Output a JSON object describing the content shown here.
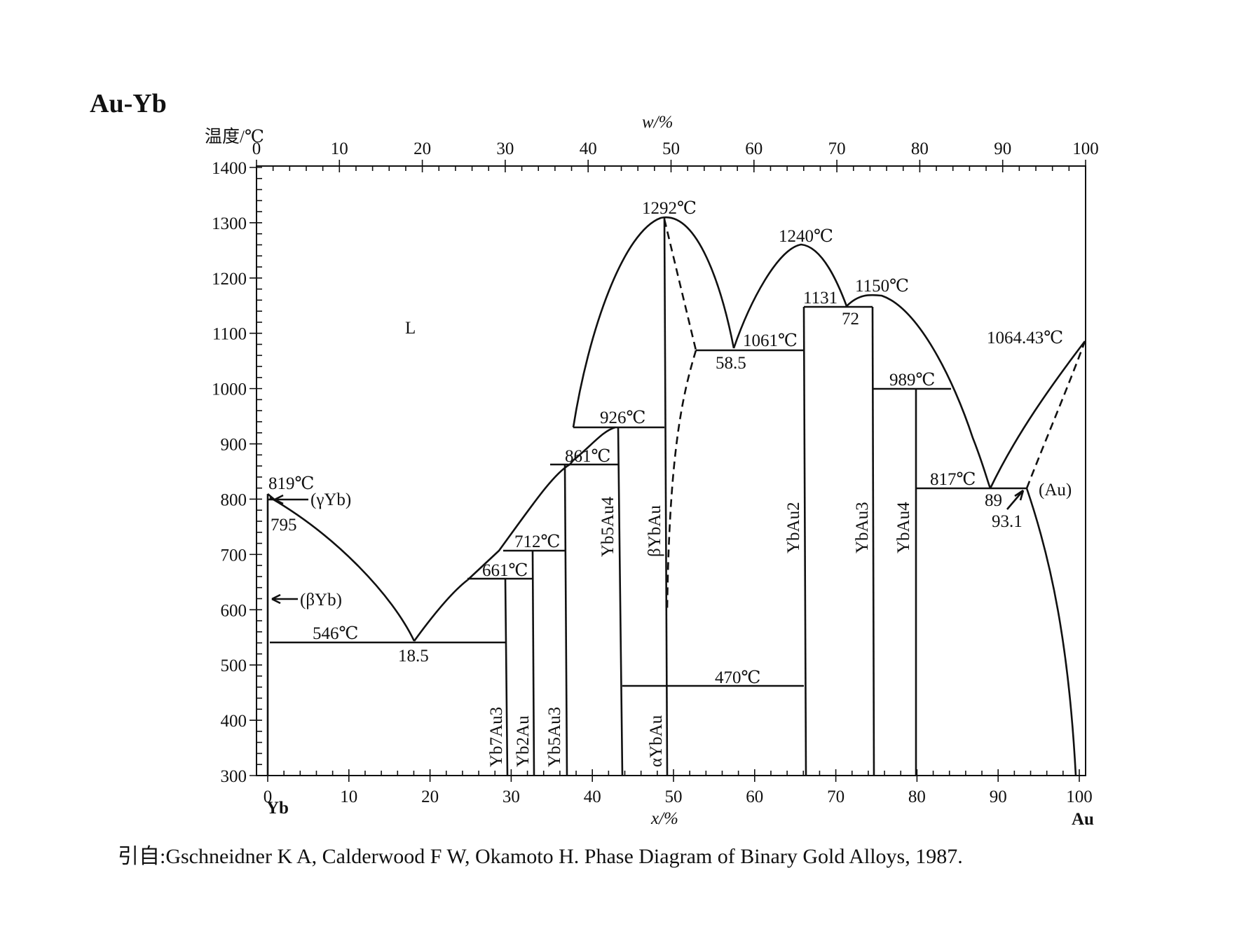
{
  "title": "Au-Yb",
  "y_axis_label": "温度/℃",
  "top_axis_label": "w/%",
  "bottom_axis_label": "x/%",
  "left_element": "Yb",
  "right_element": "Au",
  "top_ticks": [
    "0",
    "10",
    "20",
    "30",
    "40",
    "50",
    "60",
    "70",
    "80",
    "90",
    "100"
  ],
  "bottom_ticks": [
    "0",
    "10",
    "20",
    "30",
    "40",
    "50",
    "60",
    "70",
    "80",
    "90",
    "100"
  ],
  "left_ticks": [
    "1400",
    "1300",
    "1200",
    "1100",
    "1000",
    "900",
    "800",
    "700",
    "600",
    "500",
    "400",
    "300"
  ],
  "annotations": {
    "liquid": "L",
    "t1292": "1292℃",
    "t1240": "1240℃",
    "t1150": "1150℃",
    "t1064": "1064.43℃",
    "t1131": "1131",
    "c72": "72",
    "t1061": "1061℃",
    "c58": "58.5",
    "t989": "989℃",
    "t926": "926℃",
    "t861": "861℃",
    "t819": "819℃",
    "t817": "817℃",
    "c89": "89",
    "c93": "93.1",
    "t712": "712℃",
    "t661": "661℃",
    "t546": "546℃",
    "c18": "18.5",
    "t470": "470℃",
    "t795": "795",
    "gammaYb": "(γYb)",
    "betaYb": "(βYb)",
    "au": "(Au)"
  },
  "phases": {
    "yb7au3": "Yb7Au3",
    "yb2au": "Yb2Au",
    "yb5au3": "Yb5Au3",
    "yb5au4": "Yb5Au4",
    "betaybau": "βYbAu",
    "alphaybau": "αYbAu",
    "ybau2": "YbAu2",
    "ybau3": "YbAu3",
    "ybau4": "YbAu4"
  },
  "citation": "引自:Gschneidner K A, Calderwood F W, Okamoto H. Phase Diagram of Binary Gold Alloys, 1987."
}
